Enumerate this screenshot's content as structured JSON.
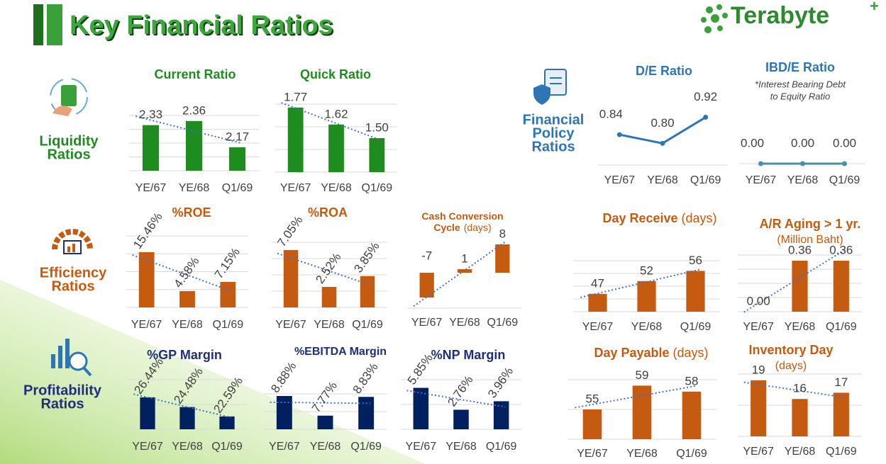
{
  "header": {
    "title": "Key Financial Ratios",
    "logo": "Terabyte",
    "logo_mark": "+"
  },
  "sections": [
    {
      "lines": [
        "Liquidity",
        "Ratios"
      ],
      "color": "#1e8c1e"
    },
    {
      "lines": [
        "Financial",
        "Policy",
        "Ratios"
      ],
      "color": "#2e75b6"
    },
    {
      "lines": [
        "Efficiency",
        "Ratios"
      ],
      "color": "#c55a11"
    },
    {
      "lines": [
        "Profitability",
        "Ratios"
      ],
      "color": "#1f2f7a"
    }
  ],
  "chart_data": [
    {
      "type": "bar",
      "title": "Current Ratio",
      "title_color": "#1e8c1e",
      "categories": [
        "YE/67",
        "YE/68",
        "Q1/69"
      ],
      "values": [
        2.33,
        2.36,
        2.17
      ],
      "value_labels": [
        "2.33",
        "2.36",
        "2.17"
      ],
      "color": "#1e8c1e",
      "ylim": [
        2.0,
        2.4
      ],
      "yticks": [
        2.0,
        2.1,
        2.2,
        2.3,
        2.4
      ],
      "grid": true,
      "trendline": true
    },
    {
      "type": "bar",
      "title": "Quick Ratio",
      "title_color": "#1e8c1e",
      "categories": [
        "YE/67",
        "YE/68",
        "Q1/69"
      ],
      "values": [
        1.77,
        1.62,
        1.5
      ],
      "value_labels": [
        "1.77",
        "1.62",
        "1.50"
      ],
      "color": "#1e8c1e",
      "ylim": [
        1.2,
        1.8
      ],
      "yticks": [
        1.2,
        1.4,
        1.6,
        1.8
      ],
      "grid": true,
      "trendline": true
    },
    {
      "type": "line",
      "title": "D/E Ratio",
      "title_color": "#2e75b6",
      "categories": [
        "YE/67",
        "YE/68",
        "Q1/69"
      ],
      "values": [
        0.84,
        0.8,
        0.92
      ],
      "value_labels": [
        "0.84",
        "0.80",
        "0.92"
      ],
      "color": "#2e75b6",
      "ylim": [
        0.7,
        1.0
      ],
      "grid": false
    },
    {
      "type": "line",
      "title": "IBD/E Ratio",
      "subtitle": [
        "*Interest Bearing Debt",
        "to Equity Ratio"
      ],
      "title_color": "#2e75b6",
      "categories": [
        "YE/67",
        "YE/68",
        "Q1/69"
      ],
      "values": [
        0,
        0,
        0
      ],
      "value_labels": [
        "0.00",
        "0.00",
        "0.00"
      ],
      "color": "#4a8fa8",
      "ylim": [
        0,
        1
      ],
      "grid": false
    },
    {
      "type": "bar",
      "title": "%ROE",
      "title_color": "#c55a11",
      "categories": [
        "YE/67",
        "YE/68",
        "Q1/69"
      ],
      "values": [
        15.46,
        4.58,
        7.15
      ],
      "value_labels": [
        "15.46%",
        "4.58%",
        "7.15%"
      ],
      "color": "#c55a11",
      "ylim": [
        0,
        20
      ],
      "yticks": [
        0,
        5,
        10,
        15,
        20
      ],
      "grid": true,
      "trendline": true,
      "rotate_labels": true
    },
    {
      "type": "bar",
      "title": "%ROA",
      "title_color": "#c55a11",
      "categories": [
        "YE/67",
        "YE/68",
        "Q1/69"
      ],
      "values": [
        7.05,
        2.52,
        3.85
      ],
      "value_labels": [
        "7.05%",
        "2.52%",
        "3.85%"
      ],
      "color": "#c55a11",
      "ylim": [
        0,
        8
      ],
      "yticks": [
        0,
        2,
        4,
        6,
        8
      ],
      "grid": true,
      "trendline": true,
      "rotate_labels": true
    },
    {
      "type": "bar",
      "title": [
        "Cash Conversion",
        "Cycle"
      ],
      "unit": "(days)",
      "title_color": "#c55a11",
      "categories": [
        "YE/67",
        "YE/68",
        "Q1/69"
      ],
      "values": [
        -7,
        1,
        8
      ],
      "value_labels": [
        "-7",
        "1",
        "8"
      ],
      "color": "#c55a11",
      "ylim": [
        -10,
        10
      ],
      "grid": false,
      "trendline": true
    },
    {
      "type": "bar",
      "title": "Day Receive",
      "unit": "(days)",
      "title_color": "#c55a11",
      "categories": [
        "YE/67",
        "YE/68",
        "Q1/69"
      ],
      "values": [
        47,
        52,
        56
      ],
      "value_labels": [
        "47",
        "52",
        "56"
      ],
      "color": "#c55a11",
      "ylim": [
        40,
        60
      ],
      "yticks": [
        40,
        45,
        50,
        55,
        60
      ],
      "grid": true,
      "trendline": true
    },
    {
      "type": "bar",
      "title": "A/R Aging > 1 yr.",
      "unit": "(Million Baht)",
      "title_color": "#c55a11",
      "categories": [
        "YE/67",
        "YE/68",
        "Q1/69"
      ],
      "values": [
        0,
        0.36,
        0.36
      ],
      "value_labels": [
        "0.00",
        "0.36",
        "0.36"
      ],
      "color": "#c55a11",
      "ylim": [
        0,
        0.4
      ],
      "yticks": [
        0,
        0.1,
        0.2,
        0.3,
        0.4
      ],
      "grid": true,
      "trendline": true
    },
    {
      "type": "bar",
      "title": "%GP Margin",
      "title_color": "#1f2f7a",
      "categories": [
        "YE/67",
        "YE/68",
        "Q1/69"
      ],
      "values": [
        26.44,
        24.48,
        22.59
      ],
      "value_labels": [
        "26.44%",
        "24.48%",
        "22.59%"
      ],
      "color": "#002060",
      "ylim": [
        20,
        30
      ],
      "yticks": [
        20,
        25,
        30
      ],
      "grid": true,
      "trendline": true,
      "rotate_labels": true
    },
    {
      "type": "bar",
      "title": "%EBITDA Margin",
      "title_color": "#1f2f7a",
      "categories": [
        "YE/67",
        "YE/68",
        "Q1/69"
      ],
      "values": [
        8.88,
        7.77,
        8.83
      ],
      "value_labels": [
        "8.88%",
        "7.77%",
        "8.83%"
      ],
      "color": "#002060",
      "ylim": [
        7,
        9
      ],
      "yticks": [
        7,
        8,
        9
      ],
      "grid": true,
      "trendline": true,
      "rotate_labels": true
    },
    {
      "type": "bar",
      "title": "%NP Margin",
      "title_color": "#1f2f7a",
      "categories": [
        "YE/67",
        "YE/68",
        "Q1/69"
      ],
      "values": [
        5.85,
        2.76,
        3.96
      ],
      "value_labels": [
        "5.85%",
        "2.76%",
        "3.96%"
      ],
      "color": "#002060",
      "ylim": [
        0,
        7
      ],
      "yticks": [
        0,
        3.5,
        7
      ],
      "grid": true,
      "trendline": true,
      "rotate_labels": true
    },
    {
      "type": "bar",
      "title": "Day Payable",
      "unit": "(days)",
      "title_color": "#c55a11",
      "categories": [
        "YE/67",
        "YE/68",
        "Q1/69"
      ],
      "values": [
        55,
        59,
        58
      ],
      "value_labels": [
        "55",
        "59",
        "58"
      ],
      "color": "#c55a11",
      "ylim": [
        50,
        60
      ],
      "yticks": [
        50,
        55,
        60
      ],
      "grid": true,
      "trendline": true
    },
    {
      "type": "bar",
      "title": "Inventory Day",
      "unit": "(days)",
      "title_color": "#c55a11",
      "categories": [
        "YE/67",
        "YE/68",
        "Q1/69"
      ],
      "values": [
        19,
        16,
        17
      ],
      "value_labels": [
        "19",
        "16",
        "17"
      ],
      "color": "#c55a11",
      "ylim": [
        10,
        20
      ],
      "yticks": [
        10,
        15,
        20
      ],
      "grid": true,
      "trendline": true
    }
  ]
}
